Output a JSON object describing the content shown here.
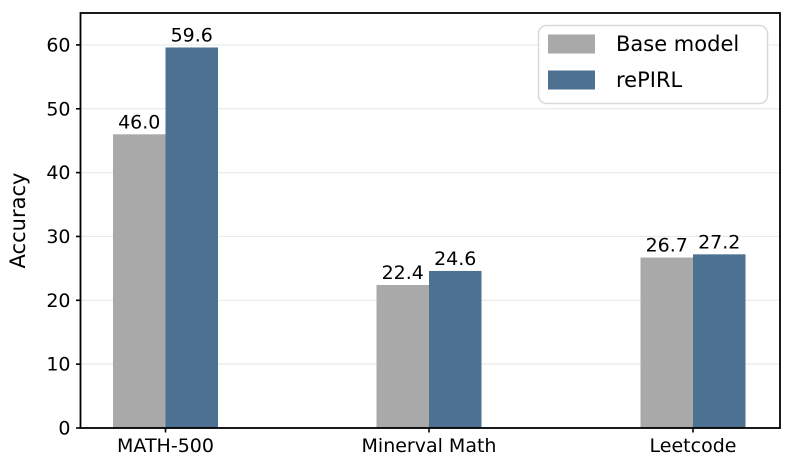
{
  "chart_data": {
    "type": "bar",
    "title": "",
    "xlabel": "",
    "ylabel": "Accuracy",
    "categories": [
      "MATH-500",
      "Minerval Math",
      "Leetcode"
    ],
    "series": [
      {
        "name": "Base model",
        "color": "#a9a9a9",
        "values": [
          46.0,
          22.4,
          26.7
        ],
        "value_labels": [
          "46.0",
          "22.4",
          "26.7"
        ]
      },
      {
        "name": "rePIRL",
        "color": "#4d7191",
        "values": [
          59.6,
          24.6,
          27.2
        ],
        "value_labels": [
          "59.6",
          "24.6",
          "27.2"
        ]
      }
    ],
    "ylim": [
      0,
      65
    ],
    "yticks": [
      0,
      10,
      20,
      30,
      40,
      50,
      60
    ],
    "grid": "horizontal",
    "grid_color": "#eaeaea",
    "axis_color": "#000000",
    "background": "#ffffff",
    "legend": {
      "position": "upper right",
      "entries": [
        {
          "label": "Base model",
          "color": "#a9a9a9"
        },
        {
          "label": "rePIRL",
          "color": "#4d7191"
        }
      ],
      "border_color": "#d9d9d9",
      "fill": "#ffffff"
    }
  }
}
